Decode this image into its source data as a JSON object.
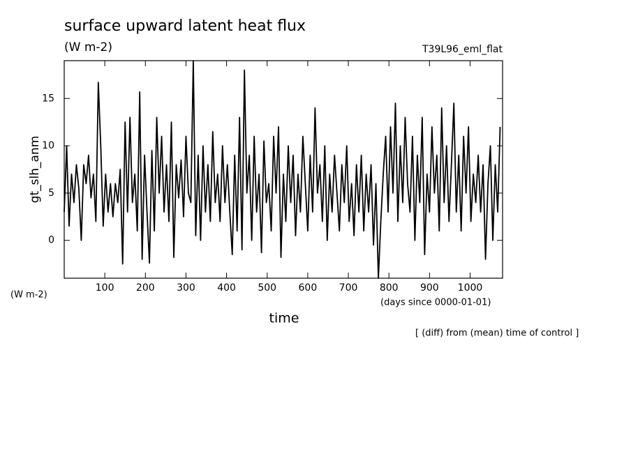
{
  "chart_data": {
    "type": "line",
    "title": "surface upward latent heat flux",
    "subtitle": "(W m-2)",
    "run_label": "T39L96_eml_flat",
    "y_label": "gt_slh_anm",
    "y_units": "(W m-2)",
    "x_units": "(days since 0000-01-01)",
    "x_label": "time",
    "note": "[ (diff) from (mean) time of control ]",
    "xlim": [
      0,
      1080
    ],
    "ylim": [
      -4,
      19
    ],
    "xticks": [
      100,
      200,
      300,
      400,
      500,
      600,
      700,
      800,
      900,
      1000
    ],
    "yticks": [
      0,
      5,
      10,
      15
    ],
    "color": "#000000",
    "x": [
      0,
      6,
      12,
      18,
      24,
      30,
      36,
      42,
      48,
      54,
      60,
      66,
      72,
      78,
      84,
      90,
      96,
      102,
      108,
      114,
      120,
      126,
      132,
      138,
      144,
      150,
      156,
      162,
      168,
      174,
      180,
      186,
      192,
      198,
      204,
      210,
      216,
      222,
      228,
      234,
      240,
      246,
      252,
      258,
      264,
      270,
      276,
      282,
      288,
      294,
      300,
      306,
      312,
      318,
      324,
      330,
      336,
      342,
      348,
      354,
      360,
      366,
      372,
      378,
      384,
      390,
      396,
      402,
      408,
      414,
      420,
      426,
      432,
      438,
      444,
      450,
      456,
      462,
      468,
      474,
      480,
      486,
      492,
      498,
      504,
      510,
      516,
      522,
      528,
      534,
      540,
      546,
      552,
      558,
      564,
      570,
      576,
      582,
      588,
      594,
      600,
      606,
      612,
      618,
      624,
      630,
      636,
      642,
      648,
      654,
      660,
      666,
      672,
      678,
      684,
      690,
      696,
      702,
      708,
      714,
      720,
      726,
      732,
      738,
      744,
      750,
      756,
      762,
      768,
      774,
      780,
      786,
      792,
      798,
      804,
      810,
      816,
      822,
      828,
      834,
      840,
      846,
      852,
      858,
      864,
      870,
      876,
      882,
      888,
      894,
      900,
      906,
      912,
      918,
      924,
      930,
      936,
      942,
      948,
      954,
      960,
      966,
      972,
      978,
      984,
      990,
      996,
      1002,
      1008,
      1014,
      1020,
      1026,
      1032,
      1038,
      1044,
      1050,
      1056,
      1062,
      1068,
      1074
    ],
    "values": [
      3,
      10,
      1.5,
      7,
      4,
      8,
      5.5,
      0,
      8,
      6,
      9,
      4.5,
      7,
      2,
      16.7,
      10,
      1.5,
      7,
      3,
      6,
      2.5,
      6,
      4,
      7.5,
      -2.5,
      12.5,
      3,
      13,
      4,
      7,
      1,
      15.7,
      -2,
      9,
      3,
      -2.4,
      9.5,
      1,
      13,
      5,
      11,
      3,
      8,
      2,
      12.5,
      -1.8,
      8,
      4.5,
      8.5,
      2.5,
      11,
      5,
      4,
      19,
      0.5,
      9,
      0,
      10,
      3,
      8,
      2,
      11.5,
      4,
      7,
      2,
      10,
      4,
      8,
      3,
      -1.5,
      9,
      1,
      13,
      -1,
      18,
      5,
      9,
      0,
      11,
      3,
      7,
      -1.3,
      10.5,
      4,
      6,
      1,
      11,
      5,
      12,
      -1.8,
      7,
      2,
      10,
      4,
      9,
      0.5,
      7,
      3,
      11,
      6,
      1,
      9,
      3,
      14,
      5,
      8,
      2,
      10,
      0,
      7,
      3,
      9,
      5,
      1,
      8,
      4,
      10,
      2,
      6,
      0.5,
      8,
      3,
      9,
      1,
      7,
      3,
      8,
      -0.5,
      6,
      -4,
      2,
      7,
      11,
      3,
      12,
      5,
      14.5,
      2,
      10,
      4,
      13,
      6,
      3,
      11,
      0,
      9,
      4,
      13,
      -1.5,
      7,
      3,
      12,
      5,
      9,
      1,
      14,
      4,
      10,
      2,
      8,
      14.5,
      3,
      9,
      1,
      11,
      5,
      12,
      2,
      7,
      4,
      9,
      3,
      8,
      -2,
      6,
      10,
      0,
      8,
      3,
      12
    ]
  }
}
